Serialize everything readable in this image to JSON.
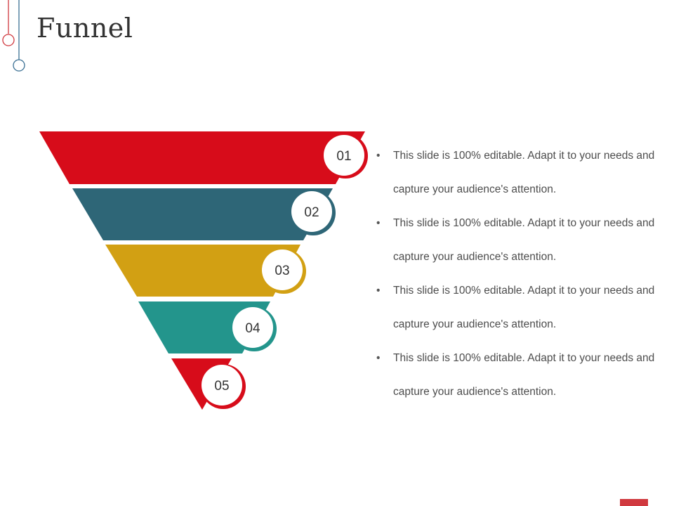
{
  "slide": {
    "title": "Funnel"
  },
  "funnel": {
    "steps": [
      {
        "number": "01",
        "color": "#d70c1a"
      },
      {
        "number": "02",
        "color": "#2e6677"
      },
      {
        "number": "03",
        "color": "#d2a013"
      },
      {
        "number": "04",
        "color": "#23958c"
      },
      {
        "number": "05",
        "color": "#d70c1a"
      }
    ]
  },
  "bullets": [
    {
      "text": "This slide is 100% editable. Adapt it to your needs and capture your audience's attention."
    },
    {
      "text": "This slide is 100% editable. Adapt it to your needs and capture your audience's attention."
    },
    {
      "text": "This slide is 100% editable. Adapt it to your needs and capture your audience's attention."
    },
    {
      "text": "This slide is 100% editable. Adapt it to your needs and capture your audience's attention."
    }
  ],
  "theme": {
    "accent_red": "#d0393f",
    "accent_blue": "#3a6f93",
    "title_color": "#333333",
    "body_text_color": "#4d4d4d"
  }
}
